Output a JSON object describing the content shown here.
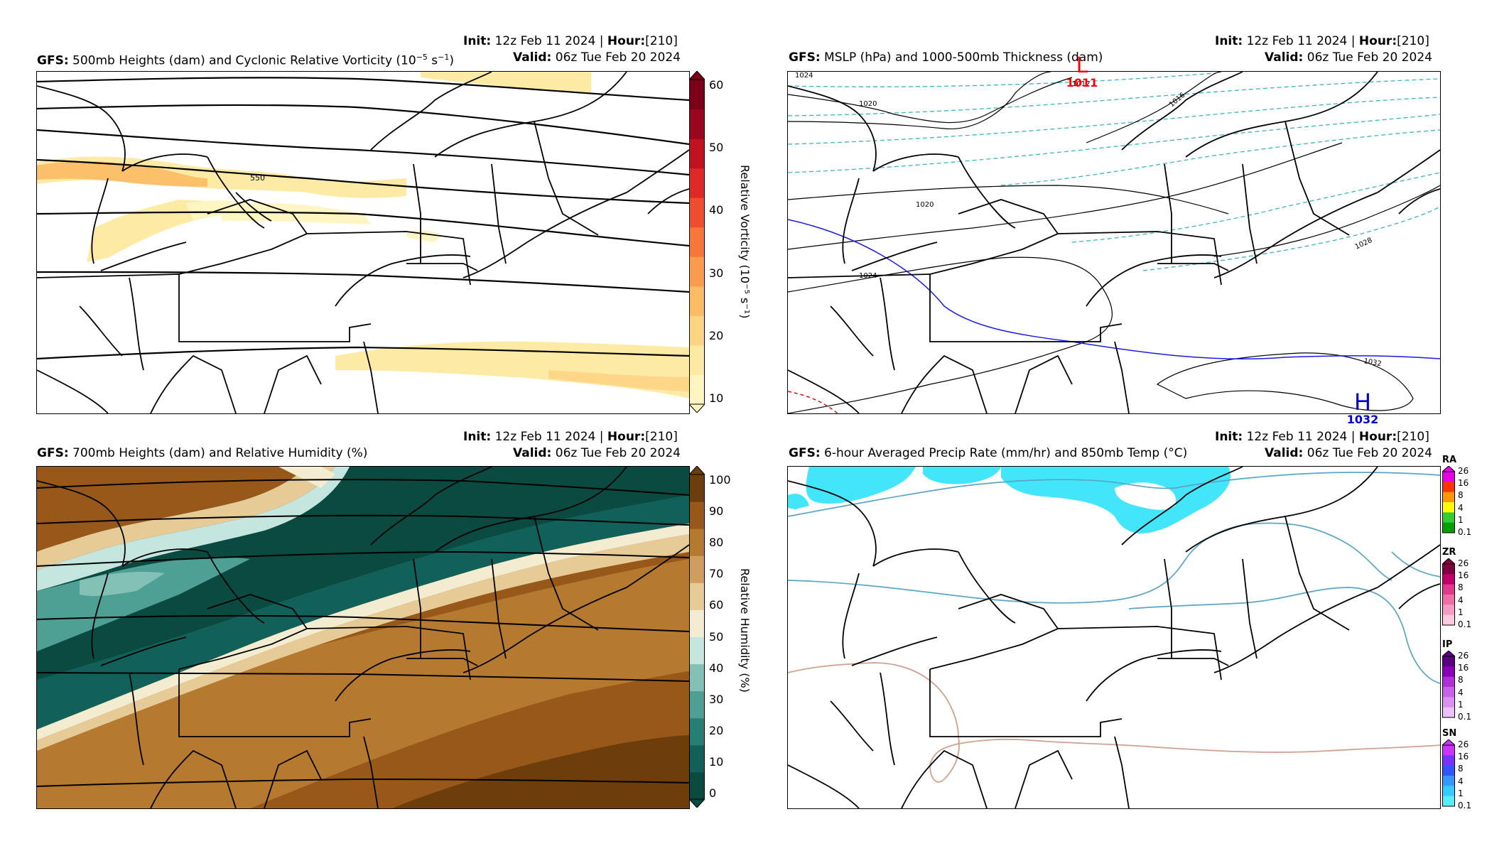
{
  "panels": {
    "p1": {
      "init_label": "Init",
      "init_value": "12z Feb 11 2024",
      "hour_label": "Hour",
      "hour_value": "[210]",
      "model": "GFS",
      "title": "500mb Heights (dam) and Cyclonic Relative Vorticity (10",
      "title_sup": "−5",
      "title_unit": " s",
      "title_sup2": "−1",
      "title_end": ")",
      "valid_label": "Valid",
      "valid_value": "06z Tue Feb 20 2024",
      "contour_label": "550",
      "colorbar": {
        "label": "Relative Vorticity (10⁻⁵ s⁻¹)",
        "ticks": [
          "60",
          "50",
          "40",
          "30",
          "20",
          "10"
        ],
        "colors": [
          "#fff5c0",
          "#fde9a0",
          "#fdd482",
          "#fcbc63",
          "#fb9c4c",
          "#f7763b",
          "#ee4e2f",
          "#de2a26",
          "#c1131f",
          "#99061e",
          "#7b0018"
        ]
      }
    },
    "p2": {
      "init_label": "Init",
      "init_value": "12z Feb 11 2024",
      "hour_label": "Hour",
      "hour_value": "[210]",
      "model": "GFS",
      "title": "MSLP (hPa) and 1000-500mb Thickness (dam)",
      "valid_label": "Valid",
      "valid_value": "06z Tue Feb 20 2024",
      "low": {
        "letter": "L",
        "value": "1011",
        "color": "#ff0000"
      },
      "high": {
        "letter": "H",
        "value": "1032",
        "color": "#0000cc"
      },
      "isobar_labels": [
        "1024",
        "1020",
        "1012",
        "1016",
        "1020",
        "1024",
        "1028",
        "1032"
      ]
    },
    "p3": {
      "init_label": "Init",
      "init_value": "12z Feb 11 2024",
      "hour_label": "Hour",
      "hour_value": "[210]",
      "model": "GFS",
      "title": "700mb Heights (dam) and Relative Humidity (%)",
      "valid_label": "Valid",
      "valid_value": "06z Tue Feb 20 2024",
      "colorbar": {
        "label": "Relative Humidity (%)",
        "ticks": [
          "100",
          "90",
          "80",
          "70",
          "60",
          "50",
          "40",
          "30",
          "20",
          "10",
          "0"
        ],
        "colors": [
          "#0a4a40",
          "#11605a",
          "#258073",
          "#4ea095",
          "#83c1b6",
          "#c5e6de",
          "#f4ecd0",
          "#e6cb96",
          "#cf9d5d",
          "#b57a30",
          "#98581a",
          "#6e3d0c"
        ]
      }
    },
    "p4": {
      "init_label": "Init",
      "init_value": "12z Feb 11 2024",
      "hour_label": "Hour",
      "hour_value": "[210]",
      "model": "GFS",
      "title": "6-hour Averaged Precip Rate (mm/hr) and 850mb Temp (°C)",
      "valid_label": "Valid",
      "valid_value": "06z Tue Feb 20 2024",
      "legends": [
        {
          "type": "RA",
          "ticks": [
            "26",
            "16",
            "8",
            "4",
            "1",
            "0.1"
          ],
          "colors": [
            "#e600e6",
            "#ff3300",
            "#ff9900",
            "#ffff00",
            "#33cc33",
            "#00a000"
          ]
        },
        {
          "type": "ZR",
          "ticks": [
            "26",
            "16",
            "8",
            "4",
            "1",
            "0.1"
          ],
          "colors": [
            "#800040",
            "#c0006a",
            "#e03a8c",
            "#ef6ea8",
            "#f59cc4",
            "#fbcbe0"
          ]
        },
        {
          "type": "IP",
          "ticks": [
            "26",
            "16",
            "8",
            "4",
            "1",
            "0.1"
          ],
          "colors": [
            "#5a0080",
            "#8a00b8",
            "#b030d8",
            "#c860e8",
            "#da90f0",
            "#ecc0f8"
          ]
        },
        {
          "type": "SN",
          "ticks": [
            "26",
            "16",
            "8",
            "4",
            "1",
            "0.1"
          ],
          "colors": [
            "#cc33ff",
            "#7a33ff",
            "#3355ff",
            "#3399ff",
            "#33ccff",
            "#55eeff"
          ]
        }
      ]
    }
  }
}
